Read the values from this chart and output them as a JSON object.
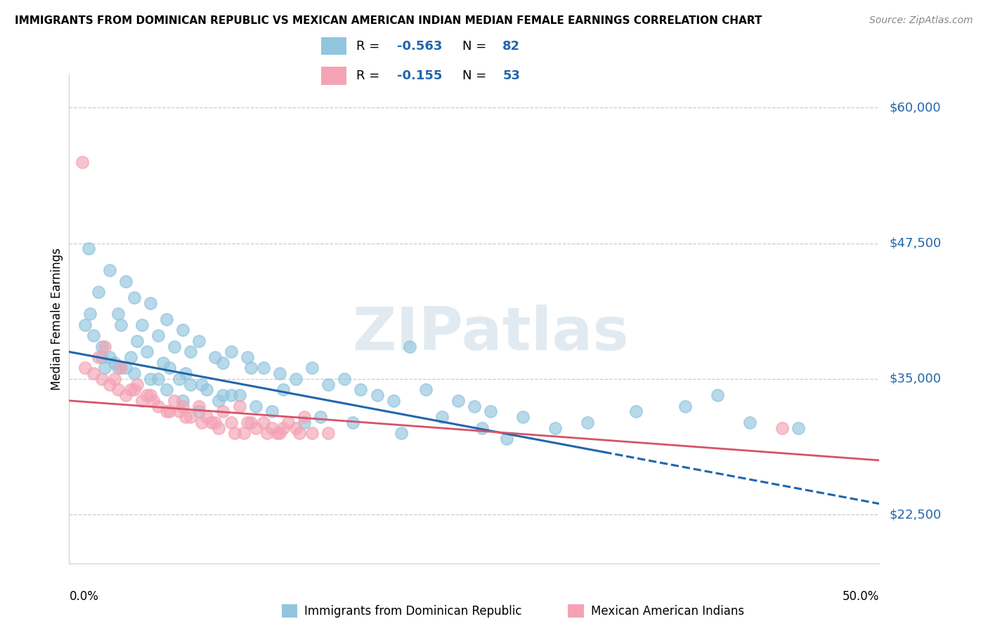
{
  "title": "IMMIGRANTS FROM DOMINICAN REPUBLIC VS MEXICAN AMERICAN INDIAN MEDIAN FEMALE EARNINGS CORRELATION CHART",
  "source": "Source: ZipAtlas.com",
  "ylabel": "Median Female Earnings",
  "y_tick_labels": [
    "$22,500",
    "$35,000",
    "$47,500",
    "$60,000"
  ],
  "y_tick_values": [
    22500,
    35000,
    47500,
    60000
  ],
  "ylim": [
    18000,
    63000
  ],
  "xlim": [
    0.0,
    50.0
  ],
  "R_blue": -0.563,
  "N_blue": 82,
  "R_pink": -0.155,
  "N_pink": 53,
  "legend_label_blue": "Immigrants from Dominican Republic",
  "legend_label_pink": "Mexican American Indians",
  "watermark": "ZIPatlas",
  "blue_color": "#92c5de",
  "pink_color": "#f4a3b4",
  "blue_line_color": "#2166ac",
  "pink_line_color": "#d6536a",
  "text_blue": "#2166ac",
  "grid_color": "#cccccc",
  "blue_scatter_x": [
    1.2,
    1.8,
    2.5,
    3.0,
    3.5,
    4.0,
    4.5,
    5.0,
    5.5,
    6.0,
    6.5,
    7.0,
    7.5,
    8.0,
    9.0,
    9.5,
    10.0,
    11.0,
    12.0,
    13.0,
    14.0,
    15.0,
    16.0,
    17.0,
    18.0,
    19.0,
    20.0,
    21.0,
    22.0,
    24.0,
    25.0,
    26.0,
    28.0,
    30.0,
    32.0,
    35.0,
    38.0,
    40.0,
    42.0,
    45.0,
    2.0,
    2.2,
    3.8,
    4.2,
    5.8,
    6.8,
    8.5,
    10.5,
    12.5,
    14.5,
    1.5,
    2.8,
    3.2,
    4.8,
    6.2,
    7.2,
    8.2,
    9.2,
    11.2,
    13.2,
    1.0,
    1.3,
    2.0,
    3.0,
    4.0,
    5.0,
    6.0,
    7.0,
    8.0,
    10.0,
    2.5,
    3.5,
    5.5,
    7.5,
    9.5,
    11.5,
    15.5,
    17.5,
    20.5,
    23.0,
    25.5,
    27.0
  ],
  "blue_scatter_y": [
    47000,
    43000,
    45000,
    41000,
    44000,
    42500,
    40000,
    42000,
    39000,
    40500,
    38000,
    39500,
    37500,
    38500,
    37000,
    36500,
    37500,
    37000,
    36000,
    35500,
    35000,
    36000,
    34500,
    35000,
    34000,
    33500,
    33000,
    38000,
    34000,
    33000,
    32500,
    32000,
    31500,
    30500,
    31000,
    32000,
    32500,
    33500,
    31000,
    30500,
    38000,
    36000,
    37000,
    38500,
    36500,
    35000,
    34000,
    33500,
    32000,
    31000,
    39000,
    36500,
    40000,
    37500,
    36000,
    35500,
    34500,
    33000,
    36000,
    34000,
    40000,
    41000,
    37000,
    36000,
    35500,
    35000,
    34000,
    33000,
    32000,
    33500,
    37000,
    36000,
    35000,
    34500,
    33500,
    32500,
    31500,
    31000,
    30000,
    31500,
    30500,
    29500
  ],
  "pink_scatter_x": [
    1.0,
    1.5,
    2.0,
    2.5,
    3.0,
    3.5,
    4.0,
    4.5,
    5.0,
    5.5,
    6.0,
    6.5,
    7.0,
    7.5,
    8.0,
    8.5,
    9.0,
    9.5,
    10.0,
    10.5,
    11.0,
    11.5,
    12.0,
    12.5,
    13.0,
    13.5,
    14.0,
    14.5,
    15.0,
    16.0,
    2.2,
    3.2,
    4.2,
    5.2,
    6.2,
    7.2,
    8.2,
    9.2,
    10.2,
    11.2,
    12.2,
    13.2,
    14.2,
    1.8,
    2.8,
    4.8,
    6.8,
    8.8,
    10.8,
    12.8,
    3.8,
    44.0,
    0.8
  ],
  "pink_scatter_y": [
    36000,
    35500,
    35000,
    34500,
    34000,
    33500,
    34000,
    33000,
    33500,
    32500,
    32000,
    33000,
    32500,
    31500,
    32500,
    31500,
    31000,
    32000,
    31000,
    32500,
    31000,
    30500,
    31000,
    30500,
    30000,
    31000,
    30500,
    31500,
    30000,
    30000,
    38000,
    36000,
    34500,
    33000,
    32000,
    31500,
    31000,
    30500,
    30000,
    31000,
    30000,
    30500,
    30000,
    37000,
    35000,
    33500,
    32000,
    31000,
    30000,
    30000,
    34000,
    30500,
    55000
  ]
}
